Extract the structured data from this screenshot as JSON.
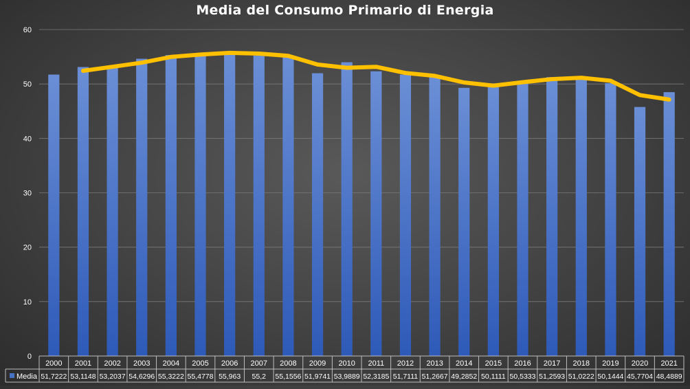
{
  "chart_data": {
    "type": "bar",
    "title": "Media del Consumo Primario di Energia",
    "categories": [
      "2000",
      "2001",
      "2002",
      "2003",
      "2004",
      "2005",
      "2006",
      "2007",
      "2008",
      "2009",
      "2010",
      "2011",
      "2012",
      "2013",
      "2014",
      "2015",
      "2016",
      "2017",
      "2018",
      "2019",
      "2020",
      "2021"
    ],
    "series": [
      {
        "name": "Media",
        "color": "#4472c4",
        "values": [
          51.7222,
          53.1148,
          53.2037,
          54.6296,
          55.3222,
          55.4778,
          55.963,
          55.2,
          55.1556,
          51.9741,
          53.9889,
          52.3185,
          51.7111,
          51.2667,
          49.2852,
          50.1111,
          50.5333,
          51.2593,
          51.0222,
          50.1444,
          45.7704,
          48.4889
        ]
      }
    ],
    "value_labels": [
      "51,7222",
      "53,1148",
      "53,2037",
      "54,6296",
      "55,3222",
      "55,4778",
      "55,963",
      "55,2",
      "55,1556",
      "51,9741",
      "53,9889",
      "52,3185",
      "51,7111",
      "51,2667",
      "49,2852",
      "50,1111",
      "50,5333",
      "51,2593",
      "51,0222",
      "50,1444",
      "45,7704",
      "48,4889"
    ],
    "trendline": {
      "type": "moving_average",
      "period": 2,
      "color": "#ffc000"
    },
    "ylim": [
      0,
      60
    ],
    "yticks": [
      "0",
      "10",
      "20",
      "30",
      "40",
      "50",
      "60"
    ],
    "grid": true,
    "data_table": true,
    "legend": "data-table"
  }
}
